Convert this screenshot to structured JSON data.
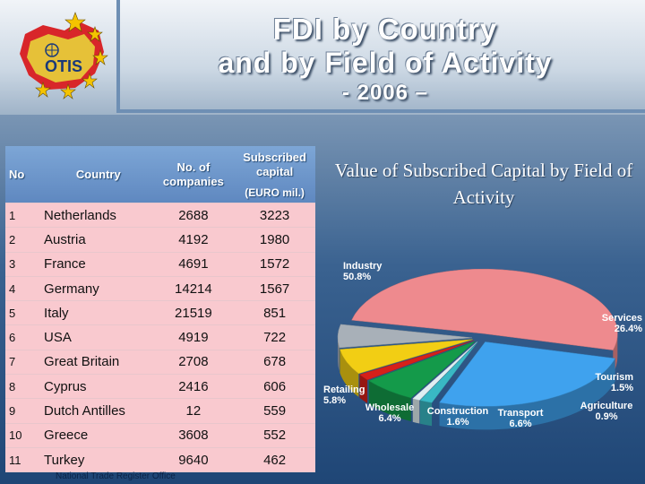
{
  "title": {
    "line1": "FDI by Country",
    "line2": "and by Field of Activity",
    "line3": "- 2006 –"
  },
  "logo": {
    "text": "OTIS",
    "icon": "eu-stars-globe-logo"
  },
  "table": {
    "headers": {
      "no": "No",
      "country": "Country",
      "companies": "No. of companies",
      "capital": "Subscribed capital",
      "capital_unit": "(EURO mil.)"
    },
    "rows": [
      {
        "no": "1",
        "country": "Netherlands",
        "companies": "2688",
        "capital": "3223"
      },
      {
        "no": "2",
        "country": "Austria",
        "companies": "4192",
        "capital": "1980"
      },
      {
        "no": "3",
        "country": "France",
        "companies": "4691",
        "capital": "1572"
      },
      {
        "no": "4",
        "country": "Germany",
        "companies": "14214",
        "capital": "1567"
      },
      {
        "no": "5",
        "country": "Italy",
        "companies": "21519",
        "capital": "851"
      },
      {
        "no": "6",
        "country": "USA",
        "companies": "4919",
        "capital": "722"
      },
      {
        "no": "7",
        "country": "Great Britain",
        "companies": "2708",
        "capital": "678"
      },
      {
        "no": "8",
        "country": "Cyprus",
        "companies": "2416",
        "capital": "606"
      },
      {
        "no": "9",
        "country": "Dutch Antilles",
        "companies": "12",
        "capital": "559"
      },
      {
        "no": "10",
        "country": "Greece",
        "companies": "3608",
        "capital": "552"
      },
      {
        "no": "11",
        "country": "Turkey",
        "companies": "9640",
        "capital": "462"
      }
    ]
  },
  "footer": "National Trade Register Office",
  "chart_data": {
    "type": "pie",
    "title": "Value of Subscribed Capital by Field of Activity",
    "slices": [
      {
        "name": "Industry",
        "label": "50.8%",
        "value": 50.8,
        "color": "#ee8a8e"
      },
      {
        "name": "Services",
        "label": "26.4%",
        "value": 26.4,
        "color": "#3fa2ee"
      },
      {
        "name": "Tourism",
        "label": "1.5%",
        "value": 1.5,
        "color": "#39b8c4"
      },
      {
        "name": "Agriculture",
        "label": "0.9%",
        "value": 0.9,
        "color": "#e0eef2"
      },
      {
        "name": "Transport",
        "label": "6.6%",
        "value": 6.6,
        "color": "#149a4a"
      },
      {
        "name": "Construction",
        "label": "1.6%",
        "value": 1.6,
        "color": "#d6201a"
      },
      {
        "name": "Wholesale",
        "label": "6.4%",
        "value": 6.4,
        "color": "#f2ce14"
      },
      {
        "name": "Retailing",
        "label": "5.8%",
        "value": 5.8,
        "color": "#a8b0b8"
      }
    ],
    "legend": "labels around pie"
  }
}
